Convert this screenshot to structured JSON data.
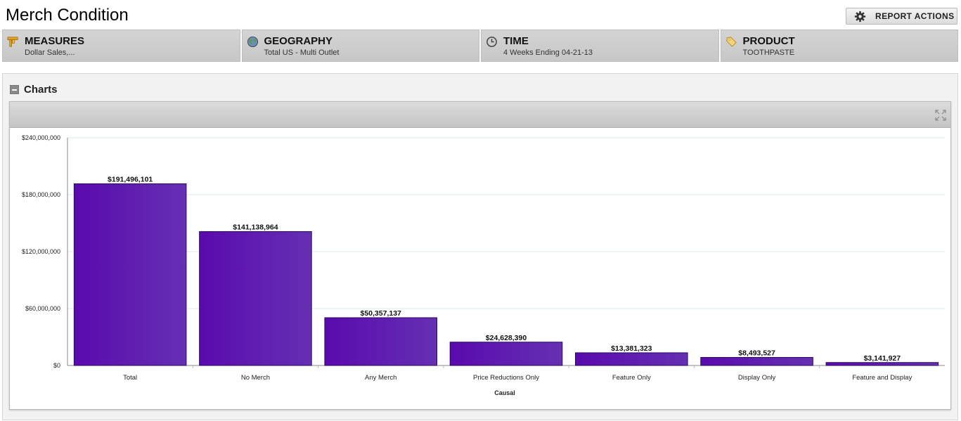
{
  "page": {
    "title": "Merch Condition"
  },
  "toolbar": {
    "report_actions_label": "REPORT ACTIONS",
    "report_actions_icon": "gear-icon"
  },
  "filters": [
    {
      "name": "MEASURES",
      "value": "Dollar Sales,...",
      "icon": "measures-icon"
    },
    {
      "name": "GEOGRAPHY",
      "value": "Total US - Multi Outlet",
      "icon": "globe-icon"
    },
    {
      "name": "TIME",
      "value": "4 Weeks Ending 04-21-13",
      "icon": "clock-icon"
    },
    {
      "name": "PRODUCT",
      "value": "TOOTHPASTE",
      "icon": "tag-icon"
    }
  ],
  "charts_section": {
    "label": "Charts"
  },
  "colors": {
    "bar_dark": "#5a0aae",
    "bar_light": "#6530b2",
    "grid": "#dde9ee"
  },
  "chart_data": {
    "type": "bar",
    "categories": [
      "Total",
      "No Merch",
      "Any Merch",
      "Price Reductions Only",
      "Feature Only",
      "Display Only",
      "Feature and Display"
    ],
    "values": [
      191496101,
      141138964,
      50357137,
      24628390,
      13381323,
      8493527,
      3141927
    ],
    "data_labels": [
      "$191,496,101",
      "$141,138,964",
      "$50,357,137",
      "$24,628,390",
      "$13,381,323",
      "$8,493,527",
      "$3,141,927"
    ],
    "title": "",
    "xlabel": "Causal",
    "ylabel": "",
    "ylim": [
      0,
      240000000
    ],
    "y_ticks": [
      0,
      60000000,
      120000000,
      180000000,
      240000000
    ],
    "y_tick_labels": [
      "$0",
      "$60,000,000",
      "$120,000,000",
      "$180,000,000",
      "$240,000,000"
    ],
    "grid": true,
    "legend": false
  }
}
